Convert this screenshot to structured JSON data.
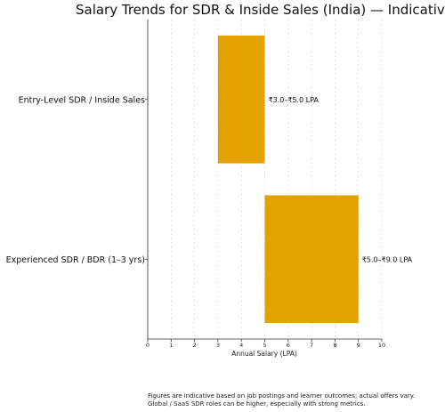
{
  "chart_data": {
    "type": "horizontal-range-bar",
    "title": "Salary Trends for SDR & Inside Sales (India) — Indicative",
    "xlabel": "Annual Salary (LPA)",
    "ylabel": "",
    "xlim": [
      0,
      10
    ],
    "xticks": [
      "0",
      "1",
      "2",
      "3",
      "4",
      "5",
      "6",
      "7",
      "8",
      "9",
      "10"
    ],
    "grid": "vertical dashed",
    "bar_color": "#E3A100",
    "categories": [
      "Entry-Level SDR / Inside Sales",
      "Experienced SDR / BDR (1–3 yrs)"
    ],
    "ranges": [
      {
        "category": "Entry-Level SDR / Inside Sales",
        "min": 3.0,
        "max": 5.0,
        "label": "₹3.0–₹5.0 LPA"
      },
      {
        "category": "Experienced SDR / BDR (1–3 yrs)",
        "min": 5.0,
        "max": 9.0,
        "label": "₹5.0–₹9.0 LPA"
      }
    ]
  },
  "footnote": {
    "line1": "Figures are indicative based on job postings and learner outcomes; actual offers vary.",
    "line2": "Global / SaaS SDR roles can be higher, especially with strong metrics."
  }
}
